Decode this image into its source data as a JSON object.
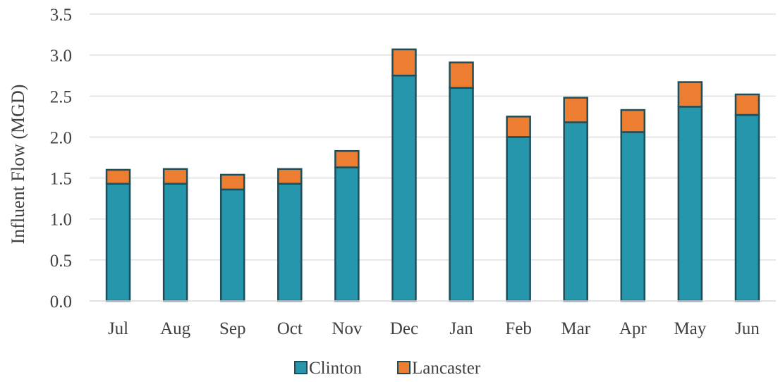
{
  "chart_data": {
    "type": "bar",
    "stacked": true,
    "title": "",
    "xlabel": "",
    "ylabel": "Influent Flow (MGD)",
    "ylim": [
      0,
      3.5
    ],
    "yticks": [
      "0.0",
      "0.5",
      "1.0",
      "1.5",
      "2.0",
      "2.5",
      "3.0",
      "3.5"
    ],
    "grid": true,
    "legend_position": "bottom",
    "categories": [
      "Jul",
      "Aug",
      "Sep",
      "Oct",
      "Nov",
      "Dec",
      "Jan",
      "Feb",
      "Mar",
      "Apr",
      "May",
      "Jun"
    ],
    "series": [
      {
        "name": "Clinton",
        "color": "#2596AB",
        "values": [
          1.43,
          1.43,
          1.36,
          1.43,
          1.63,
          2.75,
          2.6,
          2.0,
          2.18,
          2.06,
          2.37,
          2.27
        ]
      },
      {
        "name": "Lancaster",
        "color": "#ED7D31",
        "values": [
          0.17,
          0.18,
          0.18,
          0.18,
          0.2,
          0.32,
          0.31,
          0.25,
          0.3,
          0.27,
          0.3,
          0.25
        ]
      }
    ],
    "colors": {
      "bar_outline": "#1F4E59",
      "gridline": "#D9D9D9",
      "axis_line": "#D9D9D9",
      "text": "#404040"
    }
  }
}
